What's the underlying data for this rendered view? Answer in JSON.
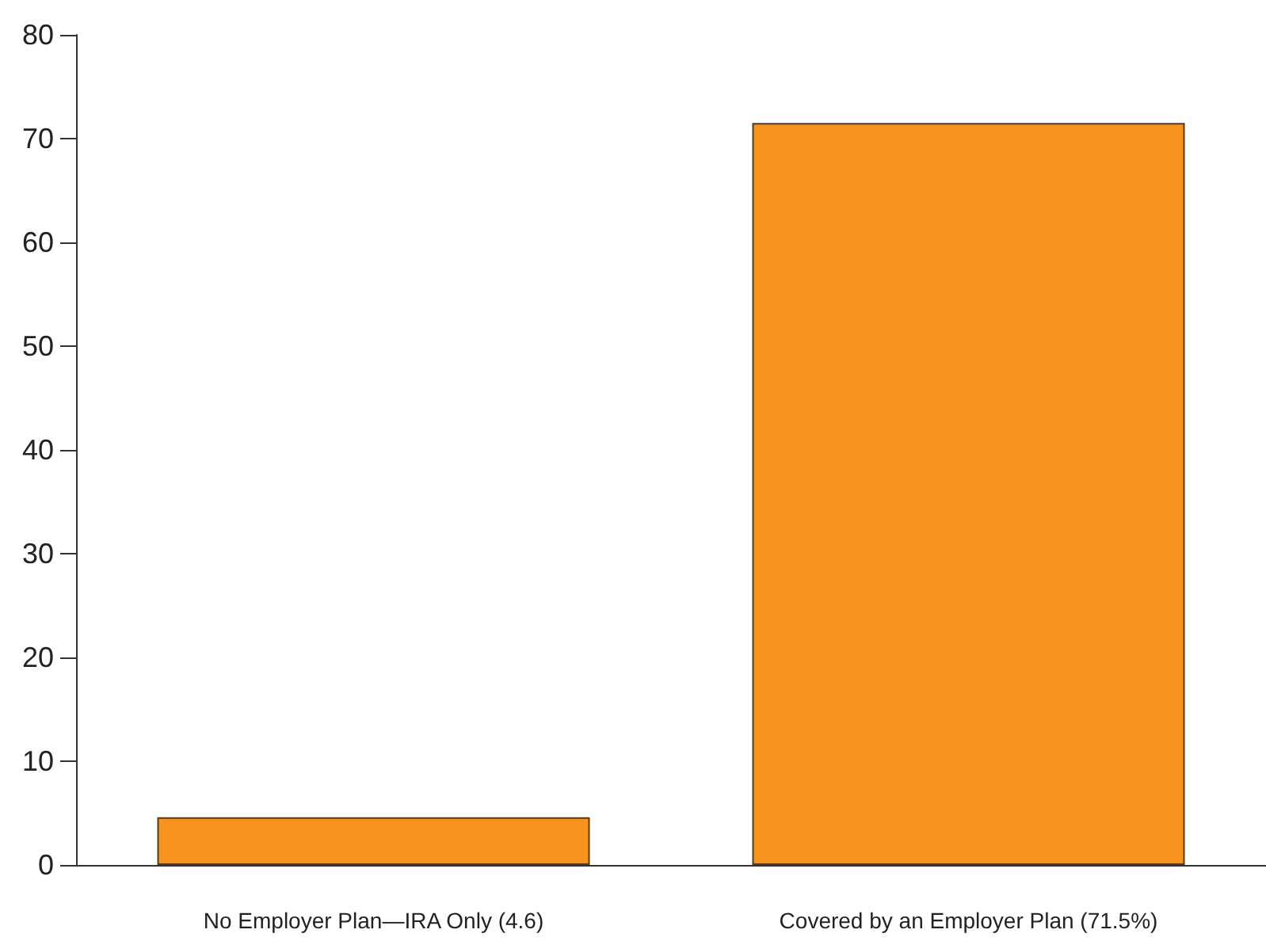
{
  "chart_data": {
    "type": "bar",
    "categories": [
      "No Employer Plan—IRA Only (4.6)",
      "Covered by an Employer Plan (71.5%)"
    ],
    "values": [
      4.6,
      71.5
    ],
    "color": "#f7941d",
    "ylim": [
      0,
      80
    ],
    "yticks": [
      0,
      10,
      20,
      30,
      40,
      50,
      60,
      70,
      80
    ],
    "grid": false
  }
}
